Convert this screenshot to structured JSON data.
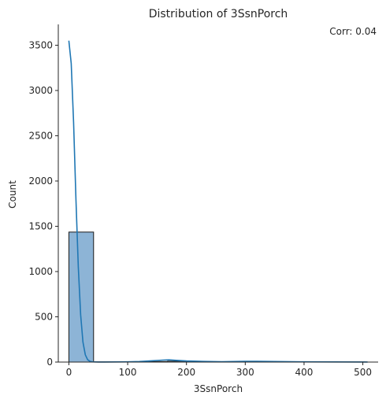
{
  "chart_data": {
    "type": "bar",
    "title": "Distribution of 3SsnPorch",
    "xlabel": "3SsnPorch",
    "ylabel": "Count",
    "annotation": "Corr: 0.04",
    "xlim": [
      -18,
      526
    ],
    "ylim": [
      0,
      3730
    ],
    "xticks": [
      0,
      100,
      200,
      300,
      400,
      500
    ],
    "yticks": [
      0,
      500,
      1000,
      1500,
      2000,
      2500,
      3000,
      3500
    ],
    "grid": false,
    "colors": {
      "bar_fill": "#8db4d6",
      "bar_edge": "#1a1a1a",
      "kde_line": "#1f77b4",
      "axis": "#262626"
    },
    "histogram": {
      "bin_edges": [
        0,
        42,
        84,
        126,
        168,
        210,
        252,
        294,
        336,
        378,
        420,
        462,
        504
      ],
      "counts": [
        1436,
        2,
        1,
        6,
        10,
        2,
        1,
        2,
        1,
        0,
        0,
        1
      ]
    },
    "kde": {
      "x": [
        0,
        4,
        8,
        12,
        16,
        20,
        24,
        28,
        32,
        36,
        40,
        50,
        60,
        80,
        100,
        120,
        140,
        160,
        170,
        180,
        200,
        230,
        260,
        300,
        320,
        350,
        400,
        450,
        508
      ],
      "y": [
        3550,
        3300,
        2650,
        1800,
        1050,
        520,
        220,
        80,
        25,
        8,
        3,
        1,
        1,
        2,
        3,
        6,
        14,
        22,
        24,
        20,
        12,
        7,
        4,
        8,
        9,
        6,
        3,
        2,
        1
      ]
    }
  }
}
